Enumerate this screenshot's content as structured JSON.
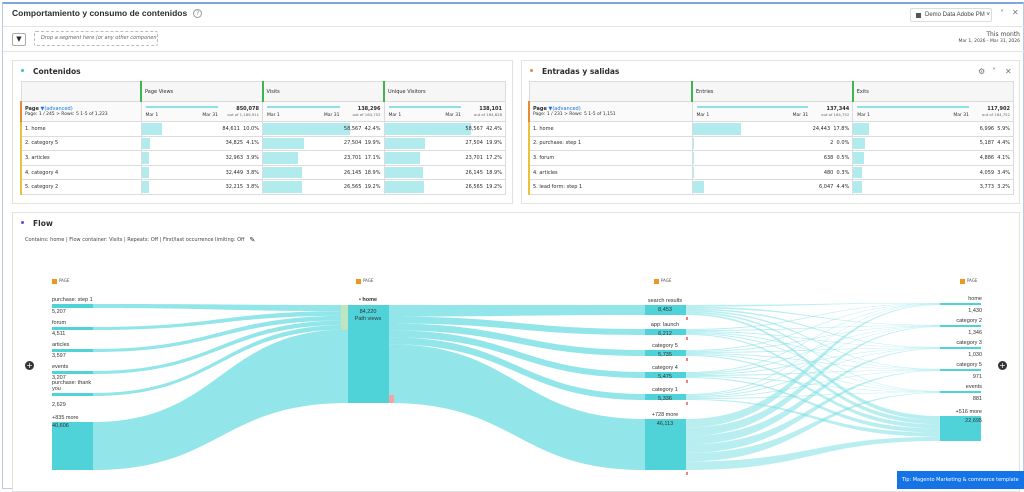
{
  "header": {
    "title": "Comportamiento y consumo de contenidos",
    "report_suite": "Demo Data Adobe PM",
    "drop_zone": "Drop a segment here (or any other component)",
    "date_label": "This month",
    "date_range": "Mar 1, 2026 - Mar 31, 2026"
  },
  "contenidos": {
    "title": "Contenidos",
    "dim": "Page",
    "adv": "(advanced)",
    "pager": "Page: 1 / 245 > Rows: 5  1-5 of 1,223",
    "metrics": [
      {
        "name": "Page Views",
        "total": "850,078",
        "outof": "out of 1,189,911"
      },
      {
        "name": "Visits",
        "total": "138,296",
        "outof": "out of 164,752"
      },
      {
        "name": "Unique Visitors",
        "total": "138,101",
        "outof": "out of 164,628"
      }
    ],
    "rows": [
      {
        "label": "1.  home",
        "vals": [
          [
            "84,611",
            "10.0%",
            10.0
          ],
          [
            "58,567",
            "42.4%",
            42.4
          ],
          [
            "58,567",
            "42.4%",
            42.4
          ]
        ]
      },
      {
        "label": "2.  category 5",
        "vals": [
          [
            "34,825",
            "4.1%",
            4.1
          ],
          [
            "27,504",
            "19.9%",
            19.9
          ],
          [
            "27,504",
            "19.9%",
            19.9
          ]
        ]
      },
      {
        "label": "3.  articles",
        "vals": [
          [
            "32,963",
            "3.9%",
            3.9
          ],
          [
            "23,701",
            "17.1%",
            17.1
          ],
          [
            "23,701",
            "17.2%",
            17.2
          ]
        ]
      },
      {
        "label": "4.  category 4",
        "vals": [
          [
            "32,449",
            "3.8%",
            3.8
          ],
          [
            "26,145",
            "18.9%",
            18.9
          ],
          [
            "26,145",
            "18.9%",
            18.9
          ]
        ]
      },
      {
        "label": "5.  category 2",
        "vals": [
          [
            "32,215",
            "3.8%",
            3.8
          ],
          [
            "26,565",
            "19.2%",
            19.2
          ],
          [
            "26,565",
            "19.2%",
            19.2
          ]
        ]
      }
    ]
  },
  "entradas": {
    "title": "Entradas y salidas",
    "dim": "Page",
    "adv": "(advanced)",
    "pager": "Page: 1 / 231 > Rows: 5  1-5 of 1,151",
    "metrics": [
      {
        "name": "Entries",
        "total": "137,344",
        "outof": "out of 164,752"
      },
      {
        "name": "Exits",
        "total": "117,902",
        "outof": "out of 164,752"
      }
    ],
    "rows": [
      {
        "label": "1.  home",
        "vals": [
          [
            "24,443",
            "17.8%",
            17.8
          ],
          [
            "6,996",
            "5.9%",
            5.9
          ]
        ]
      },
      {
        "label": "2.  purchase: step 1",
        "vals": [
          [
            "2",
            "0.0%",
            0
          ],
          [
            "5,187",
            "4.4%",
            4.4
          ]
        ]
      },
      {
        "label": "3.  forum",
        "vals": [
          [
            "638",
            "0.5%",
            0.5
          ],
          [
            "4,886",
            "4.1%",
            4.1
          ]
        ]
      },
      {
        "label": "4.  articles",
        "vals": [
          [
            "480",
            "0.3%",
            0.3
          ],
          [
            "4,059",
            "3.4%",
            3.4
          ]
        ]
      },
      {
        "label": "5.  lead form: step 1",
        "vals": [
          [
            "6,047",
            "4.4%",
            4.4
          ],
          [
            "3,773",
            "3.2%",
            3.2
          ]
        ]
      }
    ]
  },
  "common": {
    "mar1": "Mar 1",
    "mar31": "Mar 31"
  },
  "flow": {
    "title": "Flow",
    "settings": "Contains:  home | Flow container: Visits | Repeats: Off | First/last occurrence limiting: Off",
    "column_header": "PAGE",
    "focus": {
      "label": "• home",
      "value": "84,220",
      "sub": "Path views"
    },
    "left": [
      {
        "label": "purchase: step 1",
        "value": "5,207"
      },
      {
        "label": "forum",
        "value": "4,511"
      },
      {
        "label": "articles",
        "value": "3,597"
      },
      {
        "label": "events",
        "value": "3,207"
      },
      {
        "label": "purchase: thank you",
        "value": "2,629"
      },
      {
        "label": "+835 more",
        "value": "40,606"
      }
    ],
    "next": [
      {
        "label": "search results",
        "value": "8,453"
      },
      {
        "label": "app: launch",
        "value": "6,212"
      },
      {
        "label": "category 5",
        "value": "5,735"
      },
      {
        "label": "category 4",
        "value": "5,475"
      },
      {
        "label": "category 1",
        "value": "5,336"
      },
      {
        "label": "+728 more",
        "value": "46,113"
      }
    ],
    "last": [
      {
        "label": "home",
        "value": "1,430"
      },
      {
        "label": "category 2",
        "value": "1,346"
      },
      {
        "label": "category 3",
        "value": "1,030"
      },
      {
        "label": "category 5",
        "value": "971"
      },
      {
        "label": "events",
        "value": "881"
      },
      {
        "label": "+516 more",
        "value": "22,695"
      }
    ]
  },
  "tip": "Tip: Magento Marketing & commerce template",
  "colors": {
    "node": "#4fd2d8",
    "link": "#7fe0e4",
    "accent": "#1473e6"
  }
}
